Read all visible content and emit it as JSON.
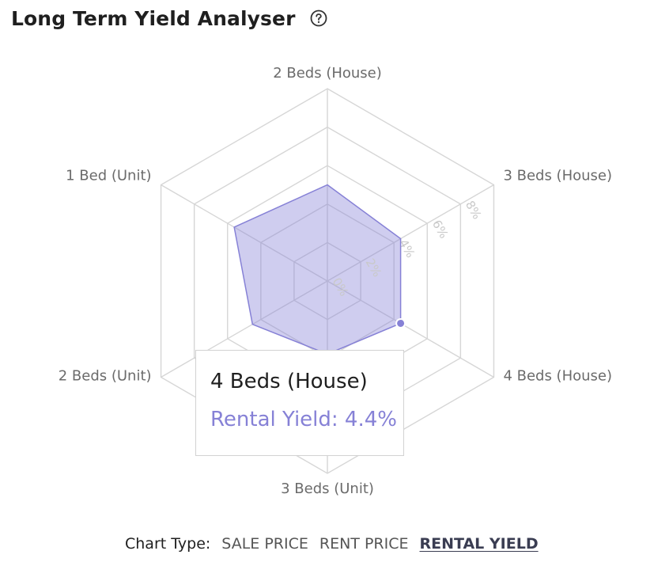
{
  "header": {
    "title": "Long Term Yield Analyser",
    "help_icon": "question-circle-icon"
  },
  "chart_data": {
    "type": "radar",
    "title": "",
    "categories": [
      "2 Beds (House)",
      "3 Beds (House)",
      "4 Beds (House)",
      "3 Beds (Unit)",
      "2 Beds (Unit)",
      "1 Bed (Unit)"
    ],
    "series": [
      {
        "values": [
          5.0,
          4.4,
          4.4,
          3.8,
          4.5,
          5.6
        ]
      }
    ],
    "radial_ticks": [
      "0%",
      "2%",
      "4%",
      "6%",
      "8%"
    ],
    "radial_range": [
      0,
      10
    ],
    "grid": true,
    "colors": {
      "fill": "#8681d6",
      "stroke": "#8681d6",
      "grid": "#d6d6d6"
    }
  },
  "tooltip": {
    "title": "4 Beds (House)",
    "value_text": "Rental Yield: 4.4%"
  },
  "chart_type": {
    "label": "Chart Type:",
    "options": [
      {
        "label": "SALE PRICE",
        "active": false
      },
      {
        "label": "RENT PRICE",
        "active": false
      },
      {
        "label": "RENTAL YIELD",
        "active": true
      }
    ]
  }
}
